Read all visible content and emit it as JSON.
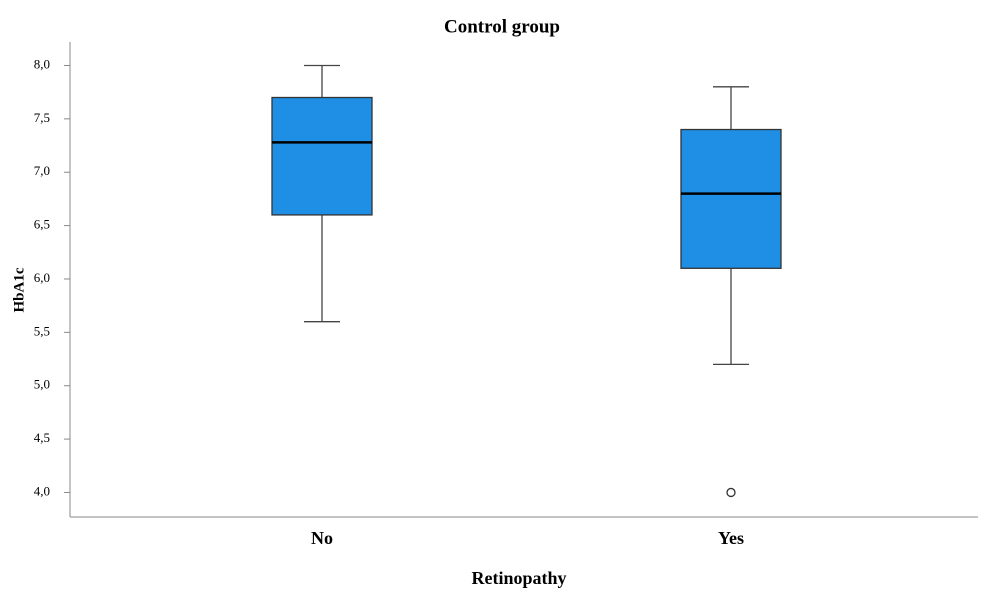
{
  "chart_data": {
    "type": "box",
    "title": "Control group",
    "x_label": "Retinopathy",
    "y_label": "HbA1c",
    "categories": [
      "No",
      "Yes"
    ],
    "boxes": [
      {
        "min": 5.6,
        "q1": 6.6,
        "median": 7.28,
        "q3": 7.7,
        "max": 8.0,
        "outliers": []
      },
      {
        "min": 5.2,
        "q1": 6.1,
        "median": 6.8,
        "q3": 7.4,
        "max": 7.8,
        "outliers": [
          4.0
        ]
      }
    ],
    "color": "#1f8fe5",
    "ylim": [
      3.77,
      8.22
    ],
    "yticks": [
      {
        "value": 4.0,
        "label": "4,0"
      },
      {
        "value": 4.5,
        "label": "4,5"
      },
      {
        "value": 5.0,
        "label": "5,0"
      },
      {
        "value": 5.5,
        "label": "5,5"
      },
      {
        "value": 6.0,
        "label": "6,0"
      },
      {
        "value": 6.5,
        "label": "6,5"
      },
      {
        "value": 7.0,
        "label": "7,0"
      },
      {
        "value": 7.5,
        "label": "7,5"
      },
      {
        "value": 8.0,
        "label": "8,0"
      }
    ],
    "grid": false
  }
}
